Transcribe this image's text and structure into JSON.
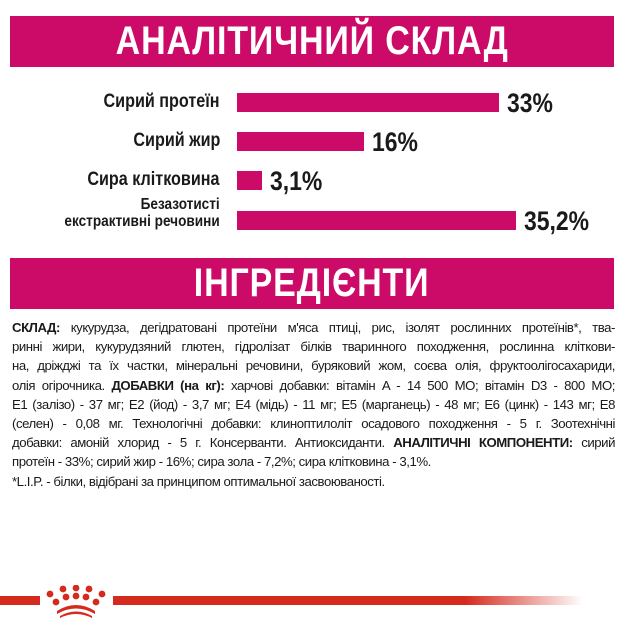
{
  "colors": {
    "accent": "#cc0a67",
    "brand_red": "#d52b1e"
  },
  "header_analytic": "АНАЛІТИЧНИЙ СКЛАД",
  "header_ingredients": "ІНГРЕДІЄНТИ",
  "chart_data": {
    "type": "bar",
    "orientation": "horizontal",
    "categories": [
      "Сирий протеїн",
      "Сирий жир",
      "Сира клітковина",
      "Безазотисті екстрактивні речовини"
    ],
    "category_lines": [
      [
        "Сирий протеїн"
      ],
      [
        "Сирий жир"
      ],
      [
        "Сира клітковина"
      ],
      [
        "Безазотисті",
        "екстрактивні речовини"
      ]
    ],
    "values": [
      33,
      16,
      3.1,
      35.2
    ],
    "value_labels": [
      "33%",
      "16%",
      "3,1%",
      "35,2%"
    ],
    "unit": "%",
    "grid": false
  },
  "ingredients_lines": [
    [
      {
        "t": "СКЛАД:",
        "b": true
      },
      {
        "t": " кукурудза, дегідратовані протеїни м'яса птиці, рис, ізолят рослинних протеїнів*, тва-",
        "b": false
      }
    ],
    [
      {
        "t": "ринні жири, кукурудзяний глютен, гідролізат білків тваринного походження, рослинна кліткови-",
        "b": false
      }
    ],
    [
      {
        "t": "на, дріжджі та їх частки, мінеральні речовини, буряковий жом, соєва олія, фруктоолігосахариди,",
        "b": false
      }
    ],
    [
      {
        "t": "олія огірочника. ",
        "b": false
      },
      {
        "t": "ДОБАВКИ (на кг):",
        "b": true
      },
      {
        "t": " харчові добавки: вітамін A - 14 500 МО; вітамін D3 - 800 МО;",
        "b": false
      }
    ],
    [
      {
        "t": "E1 (залізо) - 37 мг; E2 (йод) - 3,7 мг; E4 (мідь) - 11 мг; E5 (марганець) - 48 мг; E6 (цинк) - 143 мг; E8",
        "b": false
      }
    ],
    [
      {
        "t": "(селен) - 0,08 мг. Технологічні добавки: клиноптилоліт осадового походження - 5 г. Зоотехнічні",
        "b": false
      }
    ],
    [
      {
        "t": "добавки: амоній хлорид - 5 г. Консерванти. Антиоксиданти. ",
        "b": false
      },
      {
        "t": "АНАЛІТИЧНІ КОМПОНЕНТИ:",
        "b": true
      },
      {
        "t": " сирий",
        "b": false
      }
    ],
    [
      {
        "t": "протеїн - 33%; сирий жир - 16%; сира зола - 7,2%; сира клітковина - 3,1%.",
        "b": false
      }
    ],
    [
      {
        "t": "*L.I.P. - білки, відібрані за принципом оптимальної засвоюваності.",
        "b": false
      }
    ]
  ],
  "logo": {
    "icon": "royal-canin-crown-icon"
  }
}
